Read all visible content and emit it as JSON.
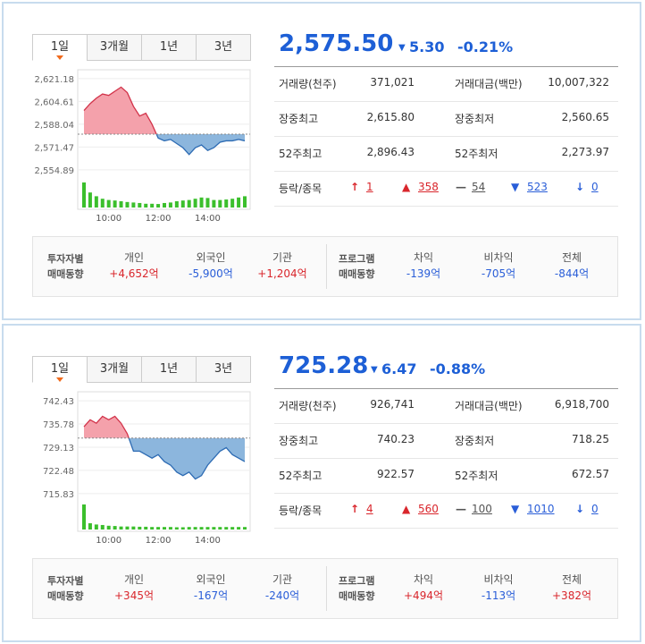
{
  "panels": [
    {
      "tabs": [
        "1일",
        "3개월",
        "1년",
        "3년"
      ],
      "price": "2,575.50",
      "change_symbol": "▼",
      "change": "5.30",
      "change_pct": "-0.21%",
      "stats": [
        [
          "거래량(천주)",
          "371,021",
          "거래대금(백만)",
          "10,007,322"
        ],
        [
          "장중최고",
          "2,615.80",
          "장중최저",
          "2,560.65"
        ],
        [
          "52주최고",
          "2,896.43",
          "52주최저",
          "2,273.97"
        ]
      ],
      "breadth": {
        "label": "등락/종목",
        "items": [
          {
            "symbol": "↑",
            "count": "1",
            "color": "#d9262c"
          },
          {
            "symbol": "▲",
            "count": "358",
            "color": "#d9262c"
          },
          {
            "symbol": "—",
            "count": "54",
            "color": "#555555"
          },
          {
            "symbol": "▼",
            "count": "523",
            "color": "#2a5ed8"
          },
          {
            "symbol": "↓",
            "count": "0",
            "color": "#2a5ed8"
          }
        ]
      },
      "flows": {
        "investor_label": [
          "투자자별",
          "매매동향"
        ],
        "investors": [
          [
            "개인",
            "+4,652억"
          ],
          [
            "외국인",
            "-5,900억"
          ],
          [
            "기관",
            "+1,204억"
          ]
        ],
        "program_label": [
          "프로그램",
          "매매동향"
        ],
        "program": [
          [
            "차익",
            "-139억"
          ],
          [
            "비차익",
            "-705억"
          ],
          [
            "전체",
            "-844억"
          ]
        ]
      },
      "chart": {
        "type": "line",
        "ylim": [
          2549,
          2625
        ],
        "yticks": [
          {
            "value": 2621.18,
            "label": "2,621.18"
          },
          {
            "value": 2604.61,
            "label": "2,604.61"
          },
          {
            "value": 2588.04,
            "label": "2,588.04"
          },
          {
            "value": 2571.47,
            "label": "2,571.47"
          },
          {
            "value": 2554.89,
            "label": "2,554.89"
          }
        ],
        "x": [
          "09:00",
          "09:15",
          "09:30",
          "09:45",
          "10:00",
          "10:15",
          "10:30",
          "10:45",
          "11:00",
          "11:15",
          "11:30",
          "11:45",
          "12:00",
          "12:15",
          "12:30",
          "12:45",
          "13:00",
          "13:15",
          "13:30",
          "13:45",
          "14:00",
          "14:15",
          "14:30",
          "14:45",
          "15:00",
          "15:15",
          "15:30"
        ],
        "xticks": [
          "10:00",
          "12:00",
          "14:00"
        ],
        "values": [
          2598,
          2603,
          2607,
          2610,
          2609,
          2612,
          2615,
          2611,
          2601,
          2594,
          2596,
          2588,
          2578,
          2576,
          2577,
          2574,
          2571,
          2566,
          2571,
          2573,
          2569,
          2571,
          2575,
          2576,
          2576,
          2577,
          2576
        ],
        "prev_close": 2580.8,
        "volume_lim": [
          0,
          100
        ],
        "volume": [
          100,
          60,
          45,
          35,
          30,
          28,
          25,
          22,
          20,
          18,
          15,
          15,
          14,
          18,
          20,
          25,
          28,
          30,
          35,
          40,
          38,
          30,
          30,
          32,
          35,
          40,
          45
        ]
      }
    },
    {
      "tabs": [
        "1일",
        "3개월",
        "1년",
        "3년"
      ],
      "price": "725.28",
      "change_symbol": "▼",
      "change": "6.47",
      "change_pct": "-0.88%",
      "stats": [
        [
          "거래량(천주)",
          "926,741",
          "거래대금(백만)",
          "6,918,700"
        ],
        [
          "장중최고",
          "740.23",
          "장중최저",
          "718.25"
        ],
        [
          "52주최고",
          "922.57",
          "52주최저",
          "672.57"
        ]
      ],
      "breadth": {
        "label": "등락/종목",
        "items": [
          {
            "symbol": "↑",
            "count": "4",
            "color": "#d9262c"
          },
          {
            "symbol": "▲",
            "count": "560",
            "color": "#d9262c"
          },
          {
            "symbol": "—",
            "count": "100",
            "color": "#555555"
          },
          {
            "symbol": "▼",
            "count": "1010",
            "color": "#2a5ed8"
          },
          {
            "symbol": "↓",
            "count": "0",
            "color": "#2a5ed8"
          }
        ]
      },
      "flows": {
        "investor_label": [
          "투자자별",
          "매매동향"
        ],
        "investors": [
          [
            "개인",
            "+345억"
          ],
          [
            "외국인",
            "-167억"
          ],
          [
            "기관",
            "-240억"
          ]
        ],
        "program_label": [
          "프로그램",
          "매매동향"
        ],
        "program": [
          [
            "차익",
            "+494억"
          ],
          [
            "비차익",
            "-113억"
          ],
          [
            "전체",
            "+382억"
          ]
        ]
      },
      "chart": {
        "type": "line",
        "ylim": [
          714,
          744
        ],
        "yticks": [
          {
            "value": 742.43,
            "label": "742.43"
          },
          {
            "value": 735.78,
            "label": "735.78"
          },
          {
            "value": 729.13,
            "label": "729.13"
          },
          {
            "value": 722.48,
            "label": "722.48"
          },
          {
            "value": 715.83,
            "label": "715.83"
          }
        ],
        "x": [
          "09:00",
          "09:15",
          "09:30",
          "09:45",
          "10:00",
          "10:15",
          "10:30",
          "10:45",
          "11:00",
          "11:15",
          "11:30",
          "11:45",
          "12:00",
          "12:15",
          "12:30",
          "12:45",
          "13:00",
          "13:15",
          "13:30",
          "13:45",
          "14:00",
          "14:15",
          "14:30",
          "14:45",
          "15:00",
          "15:15",
          "15:30"
        ],
        "xticks": [
          "10:00",
          "12:00",
          "14:00"
        ],
        "values": [
          735,
          737,
          736,
          738,
          737,
          738,
          736,
          733,
          728,
          728,
          727,
          726,
          727,
          725,
          724,
          722,
          721,
          722,
          720,
          721,
          724,
          726,
          728,
          729,
          727,
          726,
          725
        ],
        "prev_close": 731.75,
        "volume_lim": [
          0,
          100
        ],
        "volume": [
          100,
          25,
          20,
          18,
          15,
          14,
          12,
          12,
          12,
          11,
          11,
          10,
          10,
          10,
          10,
          9,
          9,
          10,
          10,
          10,
          10,
          10,
          10,
          10,
          10,
          10,
          10
        ]
      }
    }
  ]
}
